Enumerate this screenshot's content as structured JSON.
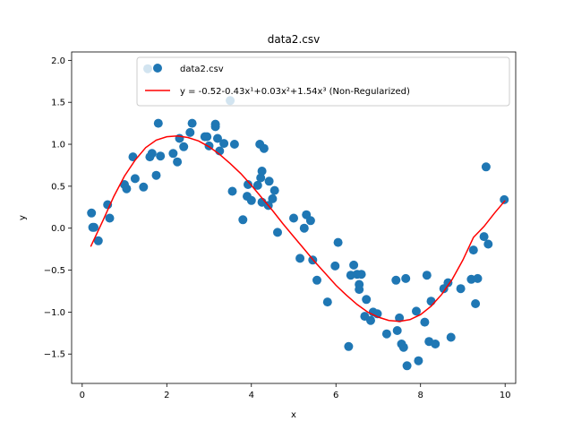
{
  "chart_data": {
    "type": "scatter",
    "title": "data2.csv",
    "xlabel": "x",
    "ylabel": "y",
    "xlim": [
      -0.25,
      10.25
    ],
    "ylim": [
      -1.85,
      2.1
    ],
    "xticks": [
      0,
      2,
      4,
      6,
      8,
      10
    ],
    "xtick_labels": [
      "0",
      "2",
      "4",
      "6",
      "8",
      "10"
    ],
    "yticks": [
      -1.5,
      -1.0,
      -0.5,
      0.0,
      0.5,
      1.0,
      1.5,
      2.0
    ],
    "ytick_labels": [
      "−1.5",
      "−1.0",
      "−0.5",
      "0.0",
      "0.5",
      "1.0",
      "1.5",
      "2.0"
    ],
    "grid": false,
    "legend_position": "top-right",
    "series": [
      {
        "name": "data2.csv",
        "kind": "scatter",
        "color": "#1f77b4",
        "points": [
          [
            0.22,
            0.18
          ],
          [
            0.25,
            0.01
          ],
          [
            0.28,
            0.01
          ],
          [
            0.38,
            -0.15
          ],
          [
            0.6,
            0.28
          ],
          [
            0.65,
            0.12
          ],
          [
            1.0,
            0.52
          ],
          [
            1.05,
            0.47
          ],
          [
            1.2,
            0.85
          ],
          [
            1.25,
            0.59
          ],
          [
            1.45,
            0.49
          ],
          [
            1.55,
            1.9
          ],
          [
            1.6,
            0.85
          ],
          [
            1.65,
            0.89
          ],
          [
            1.75,
            0.63
          ],
          [
            1.8,
            1.25
          ],
          [
            1.85,
            0.86
          ],
          [
            2.15,
            0.89
          ],
          [
            2.25,
            0.79
          ],
          [
            2.3,
            1.07
          ],
          [
            2.4,
            0.97
          ],
          [
            2.55,
            1.14
          ],
          [
            2.6,
            1.25
          ],
          [
            2.9,
            1.09
          ],
          [
            2.95,
            1.09
          ],
          [
            3.0,
            0.98
          ],
          [
            3.15,
            1.24
          ],
          [
            3.15,
            1.21
          ],
          [
            3.2,
            1.07
          ],
          [
            3.25,
            0.92
          ],
          [
            3.35,
            1.01
          ],
          [
            3.5,
            1.52
          ],
          [
            3.55,
            0.44
          ],
          [
            3.6,
            1.0
          ],
          [
            3.8,
            0.1
          ],
          [
            3.9,
            0.38
          ],
          [
            3.92,
            0.52
          ],
          [
            4.0,
            0.33
          ],
          [
            4.15,
            0.51
          ],
          [
            4.2,
            1.0
          ],
          [
            4.22,
            0.6
          ],
          [
            4.25,
            0.68
          ],
          [
            4.25,
            0.31
          ],
          [
            4.3,
            0.95
          ],
          [
            4.4,
            0.27
          ],
          [
            4.42,
            0.56
          ],
          [
            4.5,
            0.35
          ],
          [
            4.55,
            0.45
          ],
          [
            4.62,
            -0.05
          ],
          [
            5.0,
            0.12
          ],
          [
            5.15,
            -0.36
          ],
          [
            5.25,
            0.0
          ],
          [
            5.3,
            0.16
          ],
          [
            5.4,
            0.09
          ],
          [
            5.45,
            -0.38
          ],
          [
            5.55,
            -0.62
          ],
          [
            5.8,
            -0.88
          ],
          [
            5.98,
            -0.45
          ],
          [
            6.05,
            -0.17
          ],
          [
            6.3,
            -1.41
          ],
          [
            6.35,
            -0.56
          ],
          [
            6.42,
            -0.44
          ],
          [
            6.5,
            -0.55
          ],
          [
            6.55,
            -0.67
          ],
          [
            6.55,
            -0.73
          ],
          [
            6.6,
            -0.55
          ],
          [
            6.68,
            -1.05
          ],
          [
            6.72,
            -0.85
          ],
          [
            6.82,
            -1.1
          ],
          [
            6.88,
            -1.0
          ],
          [
            6.98,
            -1.02
          ],
          [
            7.2,
            -1.26
          ],
          [
            7.42,
            -0.62
          ],
          [
            7.45,
            -1.22
          ],
          [
            7.5,
            -1.07
          ],
          [
            7.55,
            -1.38
          ],
          [
            7.6,
            -1.42
          ],
          [
            7.65,
            -0.6
          ],
          [
            7.68,
            -1.64
          ],
          [
            7.9,
            -0.99
          ],
          [
            7.95,
            -1.58
          ],
          [
            8.1,
            -1.12
          ],
          [
            8.15,
            -0.56
          ],
          [
            8.2,
            -1.35
          ],
          [
            8.25,
            -0.87
          ],
          [
            8.35,
            -1.38
          ],
          [
            8.55,
            -0.72
          ],
          [
            8.65,
            -0.65
          ],
          [
            8.72,
            -1.3
          ],
          [
            8.95,
            -0.72
          ],
          [
            9.2,
            -0.61
          ],
          [
            9.25,
            -0.26
          ],
          [
            9.3,
            -0.9
          ],
          [
            9.35,
            -0.6
          ],
          [
            9.5,
            -0.1
          ],
          [
            9.55,
            0.73
          ],
          [
            9.6,
            -0.19
          ],
          [
            9.98,
            0.34
          ]
        ]
      },
      {
        "name": "y = -0.52-0.43x¹+0.03x²+1.54x³ (Non-Regularized)",
        "kind": "line",
        "color": "#ff0000",
        "points": [
          [
            0.2,
            -0.22
          ],
          [
            0.5,
            0.1
          ],
          [
            0.75,
            0.38
          ],
          [
            1.0,
            0.62
          ],
          [
            1.25,
            0.81
          ],
          [
            1.5,
            0.96
          ],
          [
            1.75,
            1.05
          ],
          [
            2.0,
            1.09
          ],
          [
            2.25,
            1.1
          ],
          [
            2.5,
            1.08
          ],
          [
            2.75,
            1.04
          ],
          [
            3.0,
            0.97
          ],
          [
            3.25,
            0.88
          ],
          [
            3.5,
            0.77
          ],
          [
            3.75,
            0.65
          ],
          [
            4.0,
            0.51
          ],
          [
            4.25,
            0.36
          ],
          [
            4.5,
            0.21
          ],
          [
            4.75,
            0.05
          ],
          [
            5.0,
            -0.1
          ],
          [
            5.25,
            -0.25
          ],
          [
            5.5,
            -0.4
          ],
          [
            5.75,
            -0.54
          ],
          [
            6.0,
            -0.68
          ],
          [
            6.25,
            -0.8
          ],
          [
            6.5,
            -0.91
          ],
          [
            6.75,
            -1.0
          ],
          [
            7.0,
            -1.06
          ],
          [
            7.25,
            -1.1
          ],
          [
            7.5,
            -1.11
          ],
          [
            7.75,
            -1.09
          ],
          [
            8.0,
            -1.03
          ],
          [
            8.25,
            -0.93
          ],
          [
            8.5,
            -0.79
          ],
          [
            8.75,
            -0.61
          ],
          [
            9.0,
            -0.38
          ],
          [
            9.25,
            -0.11
          ],
          [
            9.5,
            0.02
          ],
          [
            9.75,
            0.18
          ],
          [
            10.0,
            0.33
          ]
        ]
      }
    ]
  }
}
